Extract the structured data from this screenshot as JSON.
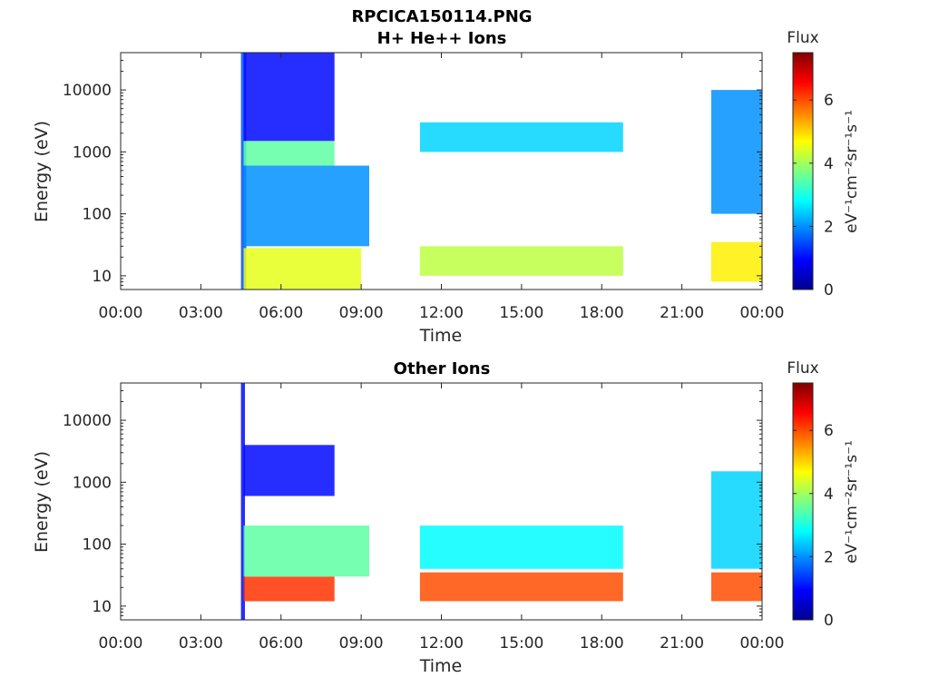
{
  "filename": "RPCICA150114.PNG",
  "colormap": [
    "#00008f",
    "#0000ff",
    "#0080ff",
    "#00ffff",
    "#80ff80",
    "#ffff00",
    "#ff8000",
    "#ff0000",
    "#800000"
  ],
  "chart_data": [
    {
      "type": "heatmap",
      "title": "H+ He++ Ions",
      "xlabel": "Time",
      "ylabel": "Energy (eV)",
      "x_ticks": [
        "00:00",
        "03:00",
        "06:00",
        "09:00",
        "12:00",
        "15:00",
        "18:00",
        "21:00",
        "00:00"
      ],
      "x_range_hours": [
        0,
        24
      ],
      "y_ticks": [
        "10",
        "100",
        "1000",
        "10000"
      ],
      "y_range_eV": [
        6,
        40000
      ],
      "y_scale": "log",
      "colorbar": {
        "title": "Flux",
        "label": "eV⁻¹cm⁻²sr⁻¹s⁻¹",
        "ticks": [
          "0",
          "2",
          "4",
          "6"
        ],
        "range": [
          0,
          7.5
        ]
      },
      "data_intervals_hours": [
        [
          4.5,
          9.3
        ],
        [
          11.2,
          18.8
        ],
        [
          22.1,
          24.0
        ]
      ],
      "bands": [
        {
          "start": 4.5,
          "end": 4.7,
          "e_low": 6,
          "e_high": 40000,
          "flux": 1.5
        },
        {
          "start": 4.6,
          "end": 9.0,
          "e_low": 6,
          "e_high": 28,
          "flux": 4.5
        },
        {
          "start": 4.6,
          "end": 8.0,
          "e_low": 600,
          "e_high": 1500,
          "flux": 3.5
        },
        {
          "start": 4.6,
          "end": 8.0,
          "e_low": 1500,
          "e_high": 40000,
          "flux": 1.0
        },
        {
          "start": 4.6,
          "end": 9.3,
          "e_low": 30,
          "e_high": 600,
          "flux": 2.0
        },
        {
          "start": 11.2,
          "end": 18.8,
          "e_low": 10,
          "e_high": 30,
          "flux": 4.2
        },
        {
          "start": 11.2,
          "end": 18.8,
          "e_low": 1000,
          "e_high": 3000,
          "flux": 2.5
        },
        {
          "start": 22.1,
          "end": 24.0,
          "e_low": 8,
          "e_high": 35,
          "flux": 4.8
        },
        {
          "start": 22.1,
          "end": 24.0,
          "e_low": 100,
          "e_high": 10000,
          "flux": 2.0
        }
      ]
    },
    {
      "type": "heatmap",
      "title": "Other Ions",
      "xlabel": "Time",
      "ylabel": "Energy (eV)",
      "x_ticks": [
        "00:00",
        "03:00",
        "06:00",
        "09:00",
        "12:00",
        "15:00",
        "18:00",
        "21:00",
        "00:00"
      ],
      "x_range_hours": [
        0,
        24
      ],
      "y_ticks": [
        "10",
        "100",
        "1000",
        "10000"
      ],
      "y_range_eV": [
        6,
        40000
      ],
      "y_scale": "log",
      "colorbar": {
        "title": "Flux",
        "label": "eV⁻¹cm⁻²sr⁻¹s⁻¹",
        "ticks": [
          "0",
          "2",
          "4",
          "6"
        ],
        "range": [
          0,
          7.5
        ]
      },
      "data_intervals_hours": [
        [
          4.5,
          9.3
        ],
        [
          11.2,
          18.8
        ],
        [
          22.1,
          24.0
        ]
      ],
      "bands": [
        {
          "start": 4.5,
          "end": 4.65,
          "e_low": 6,
          "e_high": 40000,
          "flux": 1.0
        },
        {
          "start": 4.6,
          "end": 8.0,
          "e_low": 12,
          "e_high": 30,
          "flux": 6.2
        },
        {
          "start": 4.6,
          "end": 9.3,
          "e_low": 30,
          "e_high": 200,
          "flux": 3.5
        },
        {
          "start": 4.6,
          "end": 8.0,
          "e_low": 600,
          "e_high": 4000,
          "flux": 1.0
        },
        {
          "start": 11.2,
          "end": 18.8,
          "e_low": 12,
          "e_high": 35,
          "flux": 6.0
        },
        {
          "start": 11.2,
          "end": 18.8,
          "e_low": 40,
          "e_high": 200,
          "flux": 2.8
        },
        {
          "start": 22.1,
          "end": 24.0,
          "e_low": 12,
          "e_high": 35,
          "flux": 6.0
        },
        {
          "start": 22.1,
          "end": 24.0,
          "e_low": 40,
          "e_high": 1500,
          "flux": 2.5
        }
      ]
    }
  ]
}
